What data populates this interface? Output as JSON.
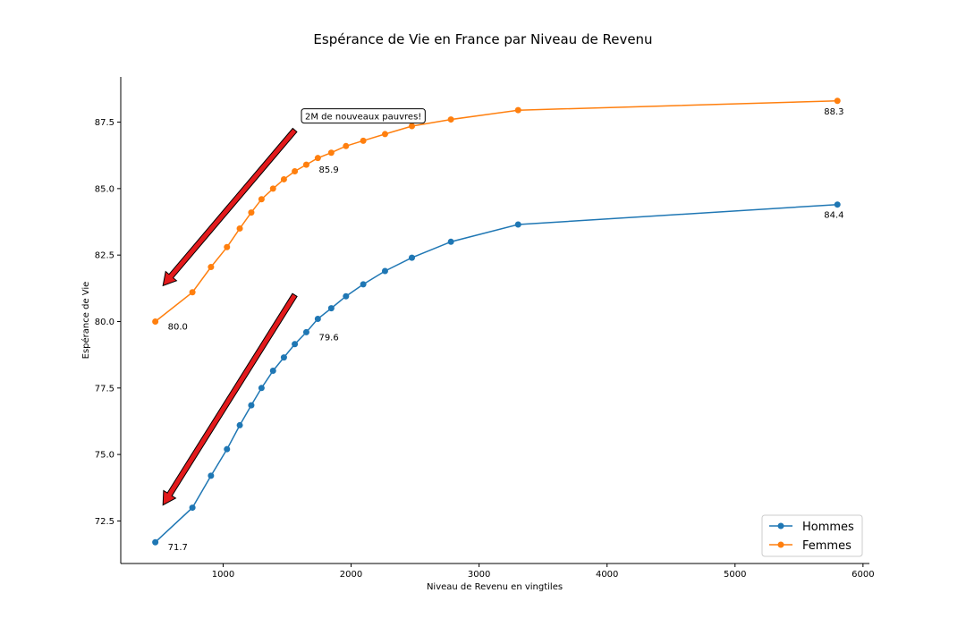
{
  "chart_data": {
    "type": "line",
    "title": "Espérance de Vie en France par Niveau de Revenu",
    "xlabel": "Niveau de Revenu en vingtiles",
    "ylabel": "Espérance de Vie",
    "xlim": [
      200,
      6050
    ],
    "ylim": [
      70.9,
      89.2
    ],
    "x_ticks": [
      1000,
      2000,
      3000,
      4000,
      5000,
      6000
    ],
    "x_tick_labels": [
      "1000",
      "2000",
      "3000",
      "4000",
      "5000",
      "6000"
    ],
    "y_ticks": [
      72.5,
      75.0,
      77.5,
      80.0,
      82.5,
      85.0,
      87.5
    ],
    "y_tick_labels": [
      "72.5",
      "75.0",
      "77.5",
      "80.0",
      "82.5",
      "85.0",
      "87.5"
    ],
    "grid": false,
    "legend_position": "bottom-right",
    "series": [
      {
        "name": "Hommes",
        "color": "#1f77b4",
        "x": [
          470,
          760,
          905,
          1030,
          1130,
          1220,
          1300,
          1390,
          1475,
          1560,
          1650,
          1740,
          1845,
          1960,
          2095,
          2265,
          2475,
          2780,
          3305,
          5800
        ],
        "y": [
          71.7,
          73.0,
          74.2,
          75.2,
          76.1,
          76.85,
          77.5,
          78.15,
          78.65,
          79.15,
          79.6,
          80.1,
          80.5,
          80.95,
          81.4,
          81.9,
          82.4,
          83.0,
          83.65,
          84.4
        ]
      },
      {
        "name": "Femmes",
        "color": "#ff7f0e",
        "x": [
          470,
          760,
          905,
          1030,
          1130,
          1220,
          1300,
          1390,
          1475,
          1560,
          1650,
          1740,
          1845,
          1960,
          2095,
          2265,
          2475,
          2780,
          3305,
          5800
        ],
        "y": [
          80.0,
          81.1,
          82.05,
          82.8,
          83.5,
          84.1,
          84.6,
          85.0,
          85.35,
          85.65,
          85.9,
          86.15,
          86.35,
          86.6,
          86.8,
          87.05,
          87.35,
          87.6,
          87.95,
          88.3
        ]
      }
    ],
    "data_labels": [
      {
        "text": "80.0",
        "x": 470,
        "y": 80.0,
        "series": "Femmes"
      },
      {
        "text": "85.9",
        "x": 1650,
        "y": 85.9,
        "series": "Femmes"
      },
      {
        "text": "88.3",
        "x": 5800,
        "y": 88.3,
        "series": "Femmes"
      },
      {
        "text": "71.7",
        "x": 470,
        "y": 71.7,
        "series": "Hommes"
      },
      {
        "text": "79.6",
        "x": 1650,
        "y": 79.6,
        "series": "Hommes"
      },
      {
        "text": "84.4",
        "x": 5800,
        "y": 84.4,
        "series": "Hommes"
      }
    ],
    "annotation": {
      "text": "2M de nouveaux pauvres!",
      "text_at": {
        "x": 1640,
        "y": 87.7
      },
      "arrows": [
        {
          "from": {
            "x": 1560,
            "y": 87.2
          },
          "to": {
            "x": 530,
            "y": 81.35
          }
        },
        {
          "from": {
            "x": 1560,
            "y": 81.0
          },
          "to": {
            "x": 530,
            "y": 73.1
          }
        }
      ],
      "arrow_color": "#e31a1c"
    }
  }
}
